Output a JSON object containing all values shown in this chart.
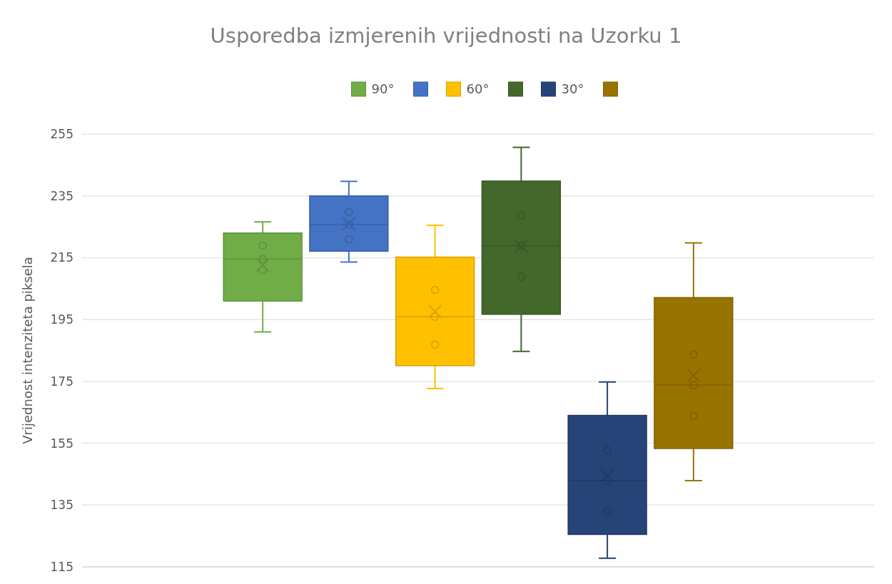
{
  "chart_data": {
    "type": "box",
    "title": "Usporedba izmjerenih vrijednosti na Uzorku 1",
    "ylabel": "Vrijednost intenziteta piksela",
    "categories": [
      null
    ],
    "ylim": [
      115,
      255
    ],
    "yticks": [
      115,
      135,
      155,
      175,
      195,
      215,
      235,
      255
    ],
    "grid": "y",
    "legend": "top",
    "tick_labels": "y",
    "series": [
      {
        "name": "90°",
        "color": "#70ad47",
        "boxes": [
          {
            "low": 191,
            "q1": 201,
            "median": 214.6,
            "q3": 223,
            "high": 226.6,
            "mean": 212.6,
            "outliers": [
              218.9,
              214.6,
              211
            ]
          }
        ]
      },
      {
        "color": "#4472c4",
        "boxes": [
          {
            "low": 213.6,
            "q1": 217.1,
            "median": 225.7,
            "q3": 235,
            "high": 239.7,
            "mean": 226,
            "outliers": [
              229.8,
              225.7,
              220.9
            ]
          }
        ]
      },
      {
        "name": "60°",
        "color": "#ffc000",
        "boxes": [
          {
            "low": 172.7,
            "q1": 180.1,
            "median": 195.9,
            "q3": 215.2,
            "high": 225.5,
            "mean": 197.6,
            "outliers": [
              204.6,
              195.9,
              186.9
            ]
          }
        ]
      },
      {
        "color": "#43682b",
        "boxes": [
          {
            "low": 184.7,
            "q1": 196.7,
            "median": 218.9,
            "q3": 239.8,
            "high": 250.7,
            "mean": 218.7,
            "outliers": [
              228.7,
              218.9,
              208.8
            ]
          }
        ]
      },
      {
        "name": "30°",
        "color": "#264478",
        "boxes": [
          {
            "low": 117.8,
            "q1": 125.5,
            "median": 142.9,
            "q3": 164,
            "high": 174.8,
            "mean": 144.6,
            "outliers": [
              152.8,
              142.9,
              133
            ]
          }
        ]
      },
      {
        "color": "#997300",
        "boxes": [
          {
            "low": 142.9,
            "q1": 153.3,
            "median": 173.8,
            "q3": 202.1,
            "high": 219.8,
            "mean": 176.9,
            "outliers": [
              183.7,
              173.8,
              163.8
            ]
          }
        ]
      }
    ]
  }
}
